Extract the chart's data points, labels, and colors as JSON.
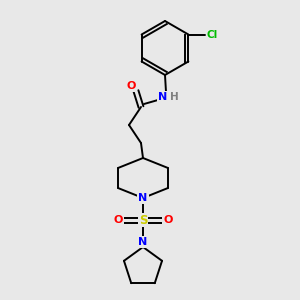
{
  "background_color": "#e8e8e8",
  "bond_color": "#000000",
  "atom_colors": {
    "O": "#ff0000",
    "N": "#0000ff",
    "S": "#cccc00",
    "Cl": "#00bb00",
    "H": "#808080"
  },
  "figsize": [
    3.0,
    3.0
  ],
  "dpi": 100
}
